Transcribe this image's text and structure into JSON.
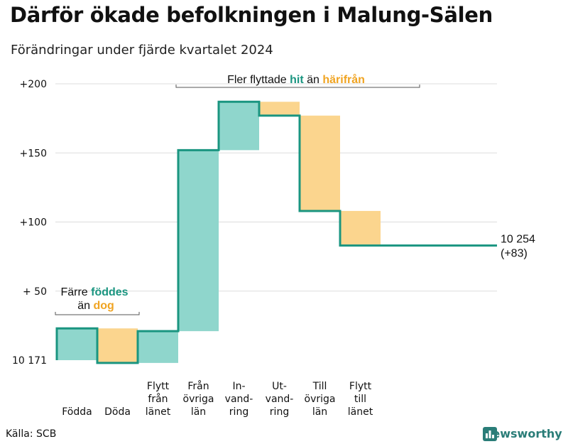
{
  "title": "Därför ökade befolkningen i Malung-Sälen",
  "subtitle": "Förändringar under fjärde kvartalet 2024",
  "source": "Källa: SCB",
  "brand": "Newsworthy",
  "colors": {
    "increase": "#8fd6cc",
    "decrease": "#fbd58e",
    "line": "#1a9580",
    "accent_green": "#1a9580",
    "accent_orange": "#f0a422"
  },
  "chart_data": {
    "type": "waterfall",
    "start_value": 10171,
    "start_label": "10 171",
    "end_label": "10 254",
    "end_change_label": "(+83)",
    "y_range": [
      -3,
      200
    ],
    "y_ticks": [
      {
        "value": 200,
        "label": "+200"
      },
      {
        "value": 150,
        "label": "+150"
      },
      {
        "value": 100,
        "label": "+100"
      },
      {
        "value": 50,
        "label": "+ 50"
      }
    ],
    "steps": [
      {
        "category": [
          "Födda"
        ],
        "delta": 23,
        "cumulative": 23
      },
      {
        "category": [
          "Döda"
        ],
        "delta": -25,
        "cumulative": -2
      },
      {
        "category": [
          "Flytt",
          "från",
          "länet"
        ],
        "delta": 23,
        "cumulative": 21
      },
      {
        "category": [
          "Från",
          "övriga",
          "län"
        ],
        "delta": 131,
        "cumulative": 152
      },
      {
        "category": [
          "In-",
          "vand-",
          "ring"
        ],
        "delta": 35,
        "cumulative": 187
      },
      {
        "category": [
          "Ut-",
          "vand-",
          "ring"
        ],
        "delta": -10,
        "cumulative": 177
      },
      {
        "category": [
          "Till",
          "övriga",
          "län"
        ],
        "delta": -69,
        "cumulative": 108
      },
      {
        "category": [
          "Flytt",
          "till",
          "länet"
        ],
        "delta": -25,
        "cumulative": 83
      }
    ],
    "annotations": [
      {
        "parts": [
          {
            "text": "Färre ",
            "style": "plain"
          },
          {
            "text": "föddes",
            "style": "green"
          }
        ],
        "parts2": [
          {
            "text": "än ",
            "style": "plain"
          },
          {
            "text": "dog",
            "style": "orange"
          }
        ]
      },
      {
        "parts": [
          {
            "text": "Fler flyttade ",
            "style": "plain"
          },
          {
            "text": "hit",
            "style": "green"
          },
          {
            "text": " än ",
            "style": "plain"
          },
          {
            "text": "härifrån",
            "style": "orange"
          }
        ]
      }
    ]
  }
}
